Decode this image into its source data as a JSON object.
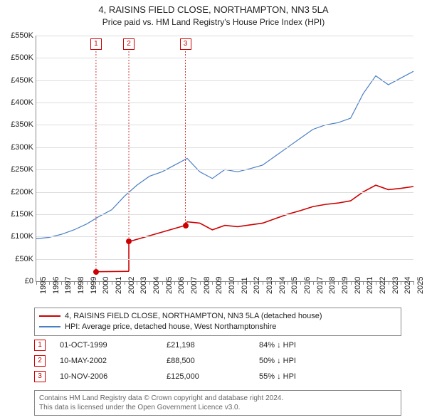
{
  "title_line1": "4, RAISINS FIELD CLOSE, NORTHAMPTON, NN3 5LA",
  "title_line2": "Price paid vs. HM Land Registry's House Price Index (HPI)",
  "chart": {
    "type": "line",
    "background_color": "#ffffff",
    "grid_color": "#dddddd",
    "ylim": [
      0,
      550000
    ],
    "ytick_step": 50000,
    "yticks": [
      "£0",
      "£50K",
      "£100K",
      "£150K",
      "£200K",
      "£250K",
      "£300K",
      "£350K",
      "£400K",
      "£450K",
      "£500K",
      "£550K"
    ],
    "xlim": [
      1995,
      2025
    ],
    "xticks": [
      1995,
      1996,
      1997,
      1998,
      1999,
      2000,
      2001,
      2002,
      2003,
      2004,
      2005,
      2006,
      2007,
      2008,
      2009,
      2010,
      2011,
      2012,
      2013,
      2014,
      2015,
      2016,
      2017,
      2018,
      2019,
      2020,
      2021,
      2022,
      2023,
      2024,
      2025
    ],
    "label_fontsize": 11,
    "title_fontsize": 13,
    "series": {
      "hpi": {
        "label": "HPI: Average price, detached house, West Northamptonshire",
        "color": "#4a7fc4",
        "line_width": 1.2,
        "x": [
          1995,
          1996,
          1997,
          1998,
          1999,
          2000,
          2001,
          2002,
          2003,
          2004,
          2005,
          2006,
          2007,
          2008,
          2009,
          2010,
          2011,
          2012,
          2013,
          2014,
          2015,
          2016,
          2017,
          2018,
          2019,
          2020,
          2021,
          2022,
          2023,
          2024,
          2025
        ],
        "y": [
          95000,
          98000,
          105000,
          115000,
          128000,
          145000,
          160000,
          190000,
          215000,
          235000,
          245000,
          260000,
          275000,
          245000,
          230000,
          250000,
          245000,
          252000,
          260000,
          280000,
          300000,
          320000,
          340000,
          350000,
          355000,
          365000,
          420000,
          460000,
          440000,
          455000,
          470000
        ]
      },
      "price_paid": {
        "label": "4, RAISINS FIELD CLOSE, NORTHAMPTON, NN3 5LA (detached house)",
        "color": "#cc0000",
        "line_width": 1.6,
        "segments": [
          {
            "x": [
              1999.75,
              2002.36
            ],
            "y": [
              21198,
              22000
            ]
          },
          {
            "x": [
              2002.36,
              2006.86
            ],
            "y": [
              88500,
              125000
            ]
          },
          {
            "x": [
              2006.86,
              2007,
              2008,
              2009,
              2010,
              2011,
              2012,
              2013,
              2014,
              2015,
              2016,
              2017,
              2018,
              2019,
              2020,
              2021,
              2022,
              2023,
              2024,
              2025
            ],
            "y": [
              125000,
              133000,
              130000,
              115000,
              125000,
              122000,
              126000,
              130000,
              140000,
              150000,
              158000,
              167000,
              172000,
              175000,
              180000,
              200000,
              215000,
              205000,
              208000,
              212000
            ]
          }
        ]
      }
    },
    "markers": [
      {
        "id": "1",
        "year": 1999.75,
        "price": 21198,
        "box_top_y": 0
      },
      {
        "id": "2",
        "year": 2002.36,
        "price": 88500,
        "box_top_y": 0
      },
      {
        "id": "3",
        "year": 2006.86,
        "price": 125000,
        "box_top_y": 0
      }
    ]
  },
  "legend": {
    "items": [
      {
        "color": "#cc0000",
        "text": "4, RAISINS FIELD CLOSE, NORTHAMPTON, NN3 5LA (detached house)"
      },
      {
        "color": "#4a7fc4",
        "text": "HPI: Average price, detached house, West Northamptonshire"
      }
    ]
  },
  "table": {
    "rows": [
      {
        "id": "1",
        "date": "01-OCT-1999",
        "price": "£21,198",
        "diff": "84% ↓ HPI"
      },
      {
        "id": "2",
        "date": "10-MAY-2002",
        "price": "£88,500",
        "diff": "50% ↓ HPI"
      },
      {
        "id": "3",
        "date": "10-NOV-2006",
        "price": "£125,000",
        "diff": "55% ↓ HPI"
      }
    ]
  },
  "footer_line1": "Contains HM Land Registry data © Crown copyright and database right 2024.",
  "footer_line2": "This data is licensed under the Open Government Licence v3.0."
}
